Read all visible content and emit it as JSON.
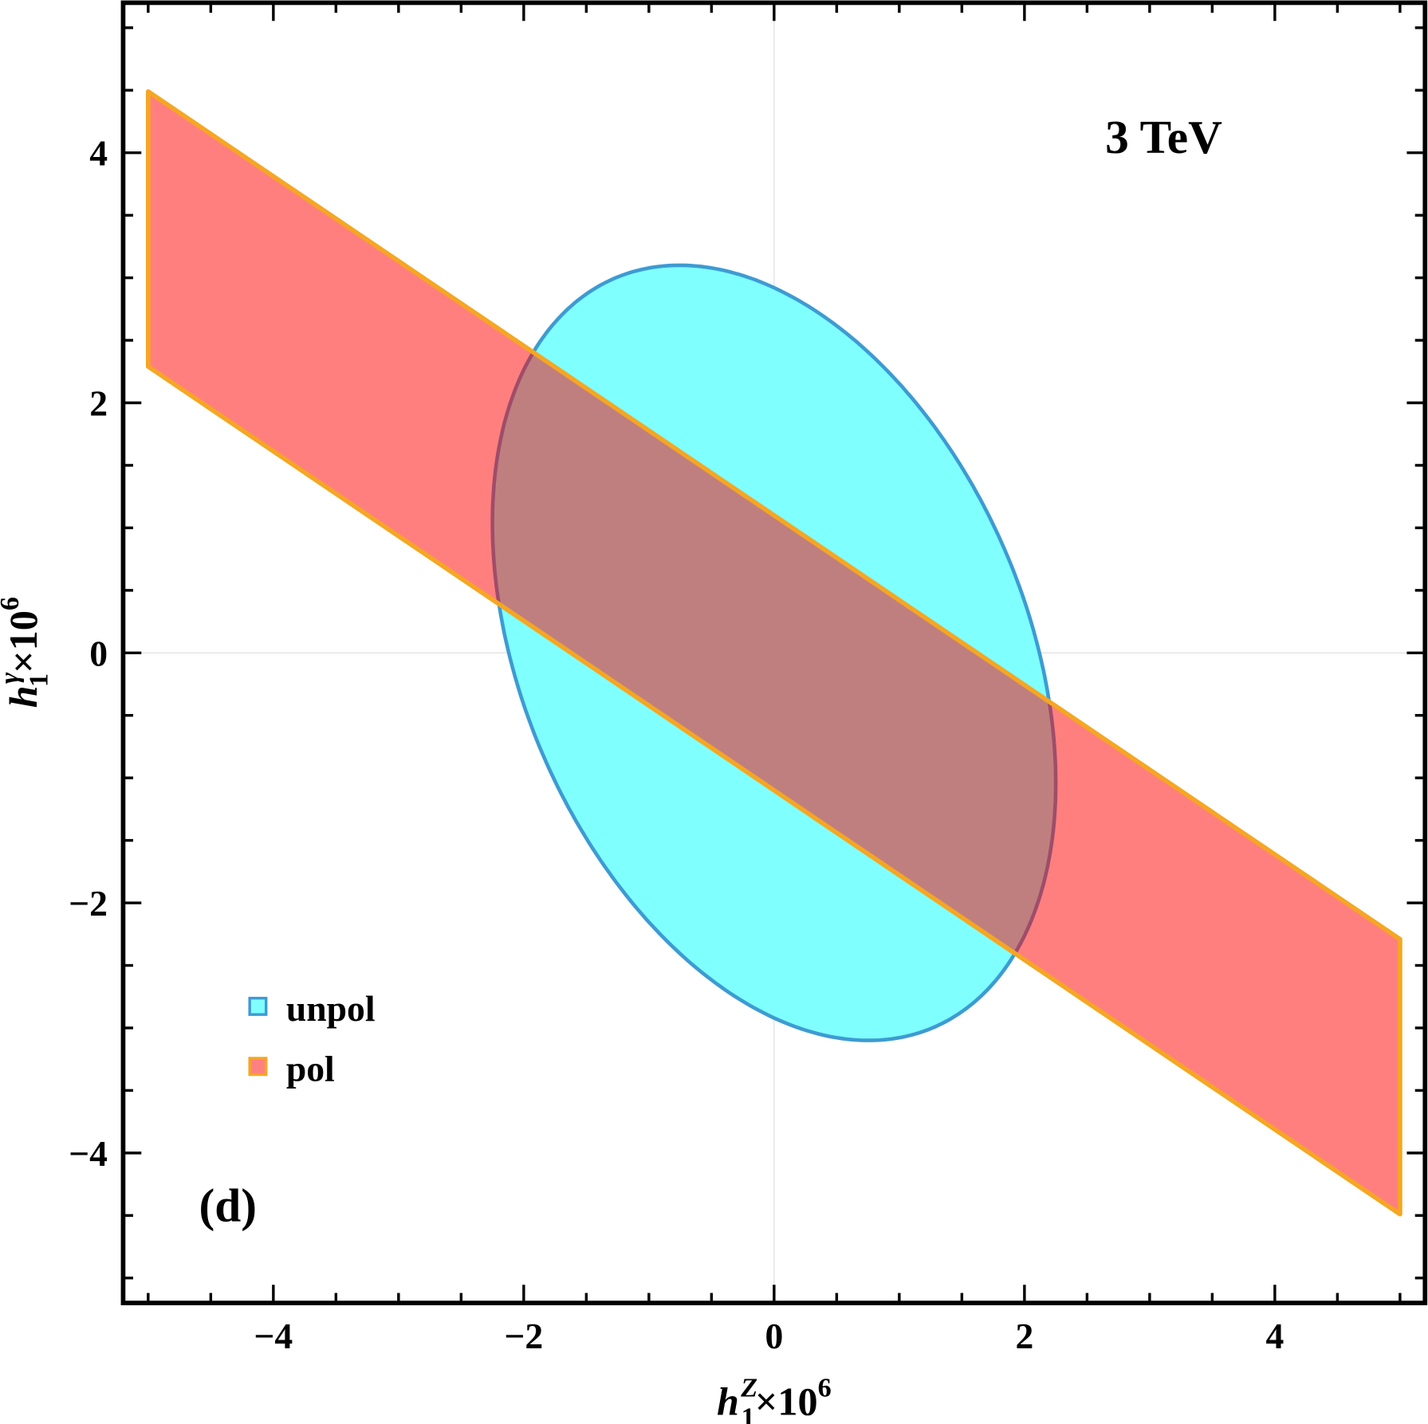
{
  "chart_data": {
    "type": "region",
    "title": "",
    "xlabel": {
      "base": "h",
      "sub": "1",
      "sup": "Z",
      "suffix": "×10",
      "exp": "6"
    },
    "ylabel": {
      "base": "h",
      "sub": "1",
      "sup": "γ",
      "suffix": "×10",
      "exp": "6"
    },
    "xlim": [
      -5.2,
      5.2
    ],
    "ylim": [
      -5.2,
      5.2
    ],
    "xticks": [
      -4,
      -2,
      0,
      2,
      4
    ],
    "yticks": [
      -4,
      -2,
      0,
      2,
      4
    ],
    "xtick_labels": [
      "−4",
      "−2",
      "0",
      "2",
      "4"
    ],
    "ytick_labels": [
      "−4",
      "−2",
      "0",
      "2",
      "4"
    ],
    "minor_tick_step": 0.5,
    "grid": "axes lines at x=0 and y=0",
    "annotations": {
      "energy": "3 TeV",
      "panel": "(d)"
    },
    "legend_placement": "bottom-left",
    "series": [
      {
        "name": "unpol",
        "shape": "ellipse",
        "center": [
          0,
          0
        ],
        "x_extreme": [
          2.25,
          -1.04
        ],
        "y_extreme": [
          -0.76,
          3.1
        ],
        "fill": "#80FFFF",
        "stroke": "#3D9BD2"
      },
      {
        "name": "pol",
        "shape": "band",
        "slope": -0.678,
        "intercepts": [
          -1.1,
          1.1
        ],
        "x_range": [
          -5,
          5
        ],
        "fill": "#FF0000",
        "fill_opacity": 0.5,
        "stroke": "#F5A623"
      }
    ]
  }
}
